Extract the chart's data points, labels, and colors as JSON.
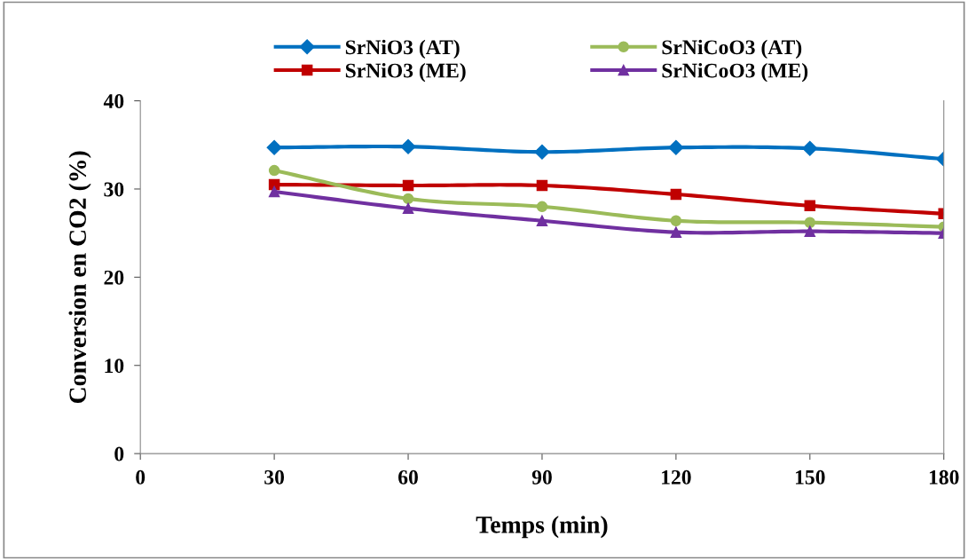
{
  "chart_data": {
    "type": "line",
    "xlabel": "Temps (min)",
    "ylabel": "Conversion en CO2 (%)",
    "x": [
      30,
      60,
      90,
      120,
      150,
      180
    ],
    "series": [
      {
        "name": "SrNiO3 (AT)",
        "color": "#0070c0",
        "marker": "diamond",
        "values": [
          34.7,
          34.8,
          34.2,
          34.7,
          34.6,
          33.4
        ]
      },
      {
        "name": "SrNiO3 (ME)",
        "color": "#c00000",
        "marker": "square",
        "values": [
          30.5,
          30.4,
          30.4,
          29.4,
          28.1,
          27.2
        ]
      },
      {
        "name": "SrNiCoO3 (AT)",
        "color": "#9bbb59",
        "marker": "circle",
        "values": [
          32.1,
          28.9,
          28.0,
          26.4,
          26.2,
          25.7
        ]
      },
      {
        "name": "SrNiCoO3 (ME)",
        "color": "#7030a0",
        "marker": "triangle",
        "values": [
          29.7,
          27.8,
          26.4,
          25.1,
          25.2,
          25.0
        ]
      }
    ],
    "xlim": [
      0,
      180
    ],
    "xticks": [
      0,
      30,
      60,
      90,
      120,
      150,
      180
    ],
    "ylim": [
      0,
      40
    ],
    "yticks": [
      0,
      10,
      20,
      30,
      40
    ],
    "grid": false,
    "legend": "top",
    "line_style": "solid"
  }
}
